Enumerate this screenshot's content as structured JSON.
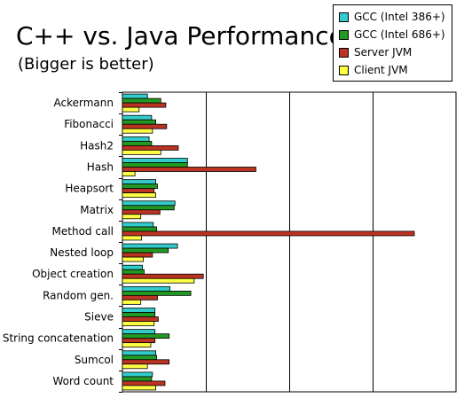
{
  "chart_data": {
    "type": "bar",
    "orientation": "horizontal",
    "title": "C++ vs. Java Performance",
    "subtitle": "(Bigger is better)",
    "xlabel": "",
    "ylabel": "",
    "xlim": [
      0,
      40
    ],
    "grid": true,
    "legend_position": "top-right",
    "categories": [
      "Ackermann",
      "Fibonacci",
      "Hash2",
      "Hash",
      "Heapsort",
      "Matrix",
      "Method call",
      "Nested loop",
      "Object creation",
      "Random gen.",
      "Sieve",
      "String concatenation",
      "Sumcol",
      "Word count"
    ],
    "series": [
      {
        "name": "GCC (Intel 386+)",
        "color": "#33cccc",
        "values": [
          3.0,
          3.5,
          3.2,
          7.8,
          4.0,
          6.3,
          3.7,
          6.6,
          2.4,
          5.7,
          3.9,
          3.9,
          4.0,
          3.6
        ]
      },
      {
        "name": "GCC (Intel 686+)",
        "color": "#229922",
        "values": [
          4.6,
          4.0,
          3.5,
          7.8,
          4.2,
          6.2,
          4.1,
          5.5,
          2.6,
          8.2,
          3.9,
          5.6,
          4.1,
          3.5
        ]
      },
      {
        "name": "Server JVM",
        "color": "#bb3322",
        "values": [
          5.2,
          5.3,
          6.7,
          16.0,
          3.8,
          4.5,
          35.0,
          3.6,
          9.7,
          4.2,
          4.3,
          3.9,
          5.6,
          5.1
        ]
      },
      {
        "name": "Client JVM",
        "color": "#ffff44",
        "values": [
          2.0,
          3.6,
          4.6,
          1.5,
          4.0,
          2.2,
          2.3,
          2.5,
          8.6,
          2.2,
          3.8,
          3.4,
          3.0,
          4.0
        ]
      }
    ]
  }
}
